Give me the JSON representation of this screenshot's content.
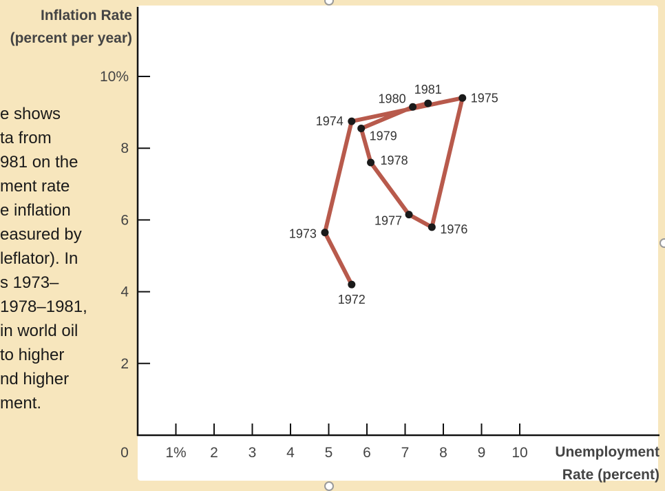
{
  "caption_lines": [
    "e shows",
    "ta from",
    "981 on the",
    "ment rate",
    "e inflation",
    "easured by",
    "leflator). In",
    "s 1973–",
    " 1978–1981,",
    " in world oil",
    "to higher",
    "nd higher",
    "ment."
  ],
  "chart_data": {
    "type": "line",
    "title": "",
    "ylabel_lines": [
      "Inflation Rate",
      "(percent per year)"
    ],
    "xlabel_lines": [
      "Unemployment",
      "Rate (percent)"
    ],
    "xlim": [
      0,
      10
    ],
    "ylim": [
      0,
      10
    ],
    "origin_label": "0",
    "x_ticks": [
      {
        "value": 1,
        "label": "1%"
      },
      {
        "value": 2,
        "label": "2"
      },
      {
        "value": 3,
        "label": "3"
      },
      {
        "value": 4,
        "label": "4"
      },
      {
        "value": 5,
        "label": "5"
      },
      {
        "value": 6,
        "label": "6"
      },
      {
        "value": 7,
        "label": "7"
      },
      {
        "value": 8,
        "label": "8"
      },
      {
        "value": 9,
        "label": "9"
      },
      {
        "value": 10,
        "label": "10"
      }
    ],
    "y_ticks": [
      {
        "value": 2,
        "label": "2"
      },
      {
        "value": 4,
        "label": "4"
      },
      {
        "value": 6,
        "label": "6"
      },
      {
        "value": 8,
        "label": "8"
      },
      {
        "value": 10,
        "label": "10%"
      }
    ],
    "grid": false,
    "line_color": "#b85a4c",
    "point_color": "#1a1a1a",
    "points": [
      {
        "year": "1972",
        "x": 5.6,
        "y": 4.2
      },
      {
        "year": "1973",
        "x": 4.9,
        "y": 5.65
      },
      {
        "year": "1974",
        "x": 5.6,
        "y": 8.75
      },
      {
        "year": "1975",
        "x": 8.5,
        "y": 9.4
      },
      {
        "year": "1976",
        "x": 7.7,
        "y": 5.8
      },
      {
        "year": "1977",
        "x": 7.1,
        "y": 6.15
      },
      {
        "year": "1978",
        "x": 6.1,
        "y": 7.6
      },
      {
        "year": "1979",
        "x": 5.85,
        "y": 8.55
      },
      {
        "year": "1980",
        "x": 7.2,
        "y": 9.15
      },
      {
        "year": "1981",
        "x": 7.6,
        "y": 9.25
      }
    ]
  }
}
